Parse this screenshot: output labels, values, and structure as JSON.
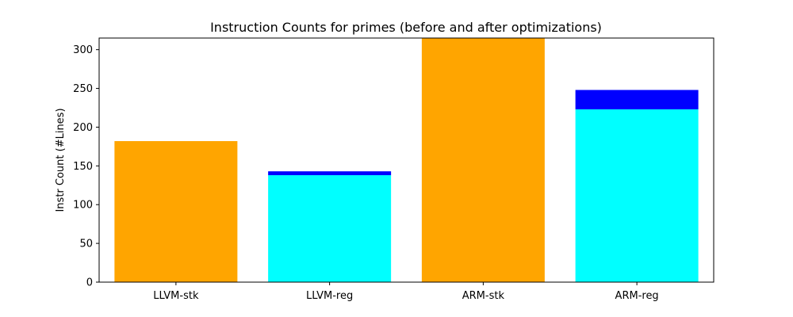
{
  "chart_data": {
    "type": "bar",
    "title": "Instruction Counts for primes (before and after optimizations)",
    "xlabel": "",
    "ylabel": "Instr Count (#Lines)",
    "categories": [
      "LLVM-stk",
      "LLVM-reg",
      "ARM-stk",
      "ARM-reg"
    ],
    "series": [
      {
        "color": "#ffa500",
        "values": [
          182,
          null,
          315,
          null
        ]
      },
      {
        "color": "#00ffff",
        "values": [
          null,
          138,
          null,
          223
        ]
      },
      {
        "color": "#0000ff",
        "values": [
          null,
          5,
          null,
          25
        ]
      }
    ],
    "stacked": true,
    "ylim": [
      0,
      315
    ],
    "yticks": [
      0,
      50,
      100,
      150,
      200,
      250,
      300
    ],
    "grid": false
  }
}
